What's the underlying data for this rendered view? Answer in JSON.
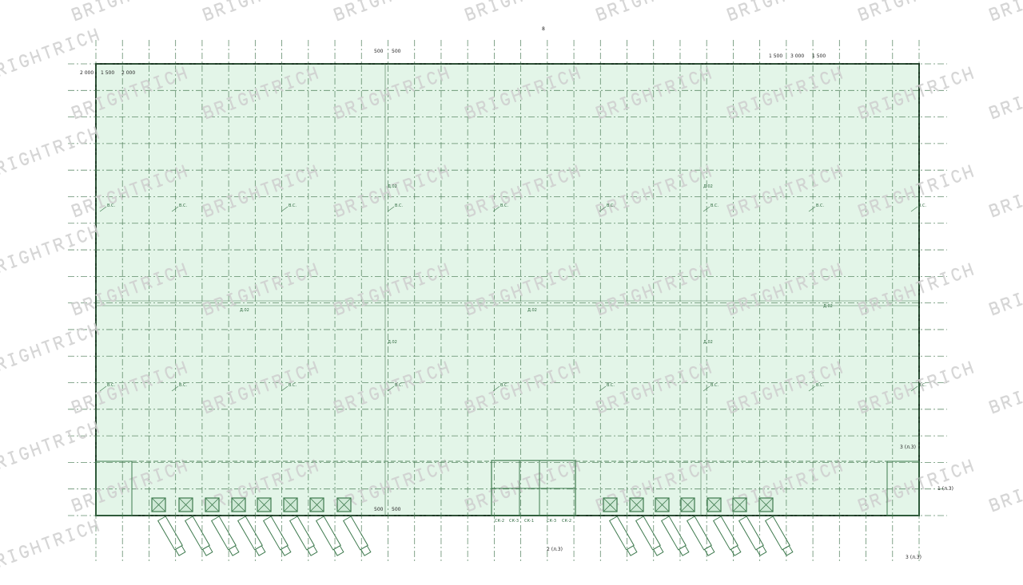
{
  "drawing": {
    "watermark": "BRIGHTRICH",
    "top_axis_mark": "8",
    "column_label": "В.С.",
    "drain_label": "Д.02",
    "dims_top_left": [
      "2 000",
      "1 500",
      "2 000"
    ],
    "dims_top_mid": [
      "500",
      "500"
    ],
    "dims_top_right": [
      "1 500",
      "3 000",
      "1 500"
    ],
    "dim_bottom_mid": [
      "500",
      "500"
    ],
    "section_marks": [
      "1 (л.3)",
      "2 (л.3)",
      "3 (л.3)",
      "3 (л.3)"
    ],
    "room_labels": [
      "СК-2",
      "СК-3",
      "СК-1",
      "СК-3",
      "СК-2"
    ],
    "colors": {
      "floor_fill": "#e3f5e8",
      "grid": "#4a7a55",
      "outline": "#1e3a26",
      "equipment": "#3e7a4e"
    }
  }
}
